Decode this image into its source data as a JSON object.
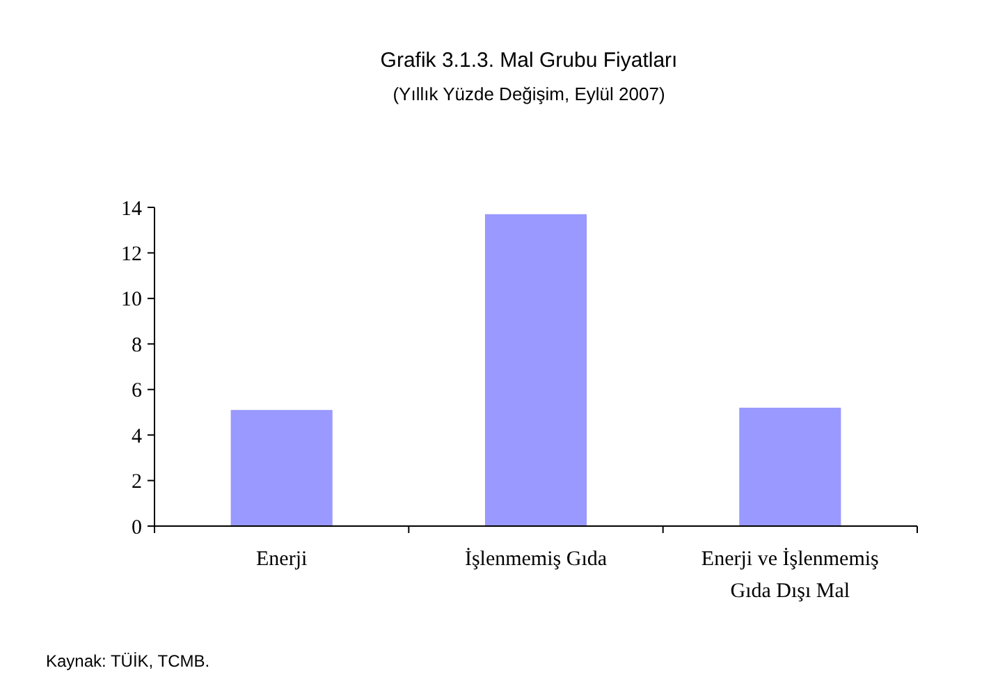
{
  "chart_data": {
    "type": "bar",
    "title": "Grafik 3.1.3. Mal Grubu Fiyatları",
    "subtitle": "(Yıllık Yüzde Değişim, Eylül 2007)",
    "categories": [
      "Enerji",
      "İşlenmemiş Gıda",
      "Enerji ve İşlenmemiş Gıda Dışı Mal"
    ],
    "values": [
      5.1,
      13.7,
      5.2
    ],
    "color": "#9999ff",
    "ylim": [
      0,
      14
    ],
    "yticks": [
      0,
      2,
      4,
      6,
      8,
      10,
      12,
      14
    ],
    "grid": false,
    "annotations": [
      "Kaynak: TÜİK, TCMB."
    ]
  }
}
